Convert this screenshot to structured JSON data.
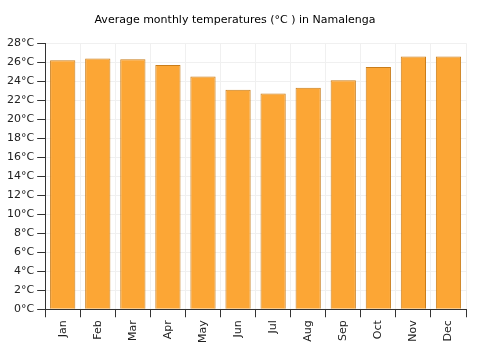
{
  "chart_data": {
    "type": "bar",
    "title": "Average monthly temperatures (°C ) in Namalenga",
    "categories": [
      "Jan",
      "Feb",
      "Mar",
      "Apr",
      "May",
      "Jun",
      "Jul",
      "Aug",
      "Sep",
      "Oct",
      "Nov",
      "Dec"
    ],
    "values": [
      26.2,
      26.4,
      26.3,
      25.7,
      24.5,
      23.1,
      22.7,
      23.3,
      24.1,
      25.5,
      26.6,
      26.6
    ],
    "color": "#fca635",
    "ylim": [
      0,
      28
    ],
    "yticks": [
      {
        "value": 0,
        "label": "0°C"
      },
      {
        "value": 2,
        "label": "2°C"
      },
      {
        "value": 4,
        "label": "4°C"
      },
      {
        "value": 6,
        "label": "6°C"
      },
      {
        "value": 8,
        "label": "8°C"
      },
      {
        "value": 10,
        "label": "10°C"
      },
      {
        "value": 12,
        "label": "12°C"
      },
      {
        "value": 14,
        "label": "14°C"
      },
      {
        "value": 16,
        "label": "16°C"
      },
      {
        "value": 18,
        "label": "18°C"
      },
      {
        "value": 20,
        "label": "20°C"
      },
      {
        "value": 22,
        "label": "22°C"
      },
      {
        "value": 24,
        "label": "24°C"
      },
      {
        "value": 26,
        "label": "26°C"
      },
      {
        "value": 28,
        "label": "28°C"
      }
    ],
    "grid": true
  }
}
